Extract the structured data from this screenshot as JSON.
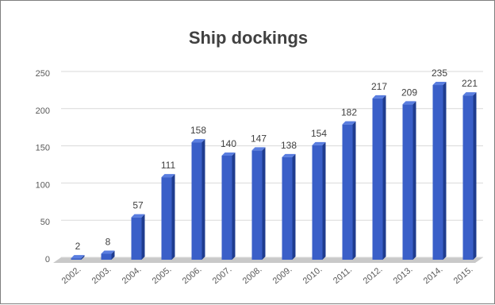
{
  "chart_data": {
    "type": "bar",
    "title": "Ship dockings",
    "xlabel": "",
    "ylabel": "",
    "categories": [
      "2002.",
      "2003.",
      "2004.",
      "2005.",
      "2006.",
      "2007.",
      "2008.",
      "2009.",
      "2010.",
      "2011.",
      "2012.",
      "2013.",
      "2014.",
      "2015."
    ],
    "values": [
      2,
      8,
      57,
      111,
      158,
      140,
      147,
      138,
      154,
      182,
      217,
      209,
      235,
      221
    ],
    "data_labels": [
      "2",
      "8",
      "57",
      "111",
      "158",
      "140",
      "147",
      "138",
      "154",
      "182",
      "217",
      "209",
      "235",
      "221"
    ],
    "ylim": [
      0,
      250
    ],
    "yticks": [
      "0",
      "50",
      "100",
      "150",
      "200",
      "250"
    ],
    "grid": true,
    "legend": "none",
    "bar_color": "#3a5fc8",
    "bar_dark_color": "#1f3c8f",
    "bar_light_color": "#5a7ee0"
  }
}
